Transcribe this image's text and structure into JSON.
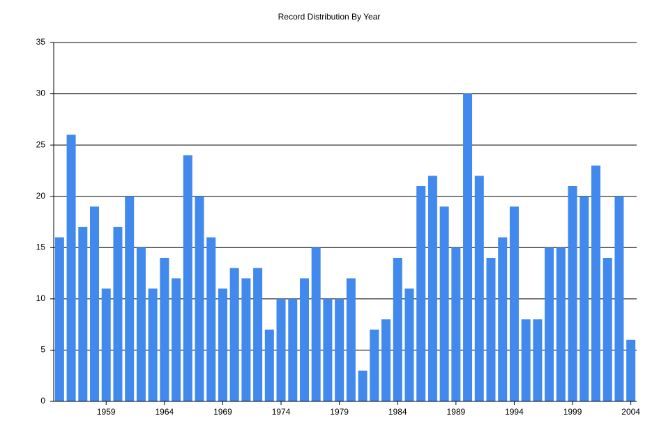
{
  "chart_data": {
    "type": "bar",
    "title": "Record Distribution By Year",
    "categories": [
      null,
      null,
      null,
      null,
      1959,
      null,
      null,
      null,
      null,
      1964,
      null,
      null,
      null,
      null,
      1969,
      null,
      null,
      null,
      null,
      1974,
      null,
      null,
      null,
      null,
      1979,
      null,
      null,
      null,
      null,
      1984,
      null,
      null,
      null,
      null,
      1989,
      null,
      null,
      null,
      null,
      1994,
      null,
      null,
      null,
      null,
      1999,
      null,
      null,
      null,
      null,
      2004
    ],
    "values": [
      16,
      26,
      17,
      19,
      11,
      17,
      20,
      15,
      11,
      14,
      12,
      24,
      20,
      16,
      11,
      13,
      12,
      13,
      7,
      10,
      10,
      12,
      15,
      10,
      10,
      12,
      3,
      7,
      8,
      14,
      11,
      21,
      22,
      19,
      15,
      30,
      22,
      14,
      16,
      19,
      8,
      8,
      15,
      15,
      21,
      20,
      23,
      14,
      20,
      6
    ],
    "color": "#4189ec",
    "ylim": [
      0,
      35
    ],
    "yticks": [
      0,
      5,
      10,
      15,
      20,
      25,
      30,
      35
    ],
    "grid": true
  }
}
